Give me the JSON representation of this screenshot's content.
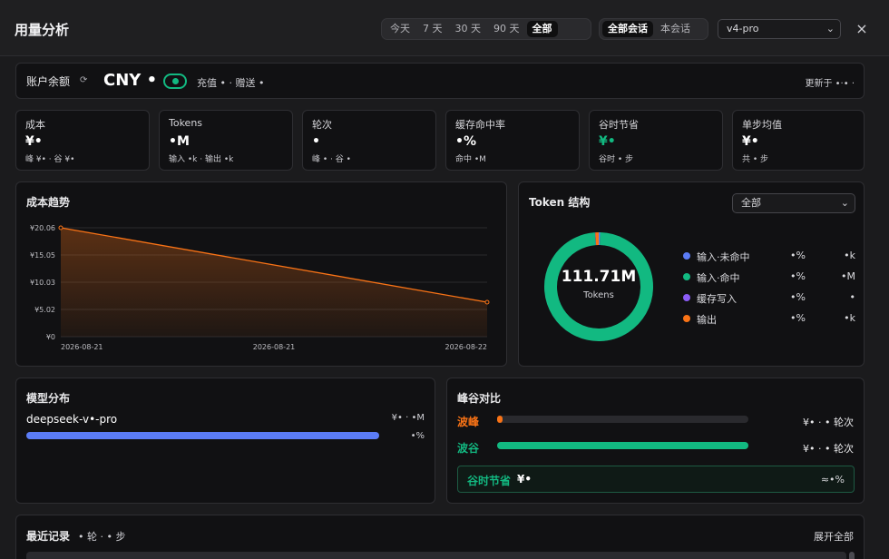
{
  "header": {
    "title": "用量分析",
    "range_options": [
      "今天",
      "7 天",
      "30 天",
      "90 天",
      "全部"
    ],
    "range_active": 4,
    "scope_options": [
      "全部会话",
      "本会话"
    ],
    "scope_active": 0,
    "model_select": "v4-pro",
    "close_label": "×"
  },
  "balance": {
    "label": "账户余额",
    "refresh_icon": "⟳",
    "currency": "CNY •",
    "detail": "充值 • · 赠送 •",
    "updated": "更新于 •·• ·"
  },
  "stats": [
    {
      "key": "成本",
      "value": "¥•",
      "sub": "峰 ¥• · 谷 ¥•",
      "green": false
    },
    {
      "key": "Tokens",
      "value": "•M",
      "sub": "输入 •k · 输出 •k",
      "green": false
    },
    {
      "key": "轮次",
      "value": "•",
      "sub": "峰 • · 谷 •",
      "green": false
    },
    {
      "key": "缓存命中率",
      "value": "•%",
      "sub": "命中 •M",
      "green": false
    },
    {
      "key": "谷时节省",
      "value": "¥•",
      "sub": "谷时 • 步",
      "green": true
    },
    {
      "key": "单步均值",
      "value": "¥•",
      "sub": "共 • 步",
      "green": false
    }
  ],
  "cost_trend": {
    "title": "成本趋势"
  },
  "chart_data": {
    "type": "area",
    "title": "成本趋势",
    "x": [
      "2026-08-21",
      "2026-08-22"
    ],
    "x_tick_labels": [
      "2026-08-21",
      "2026-08-21",
      "2026-08-22"
    ],
    "y_tick_labels": [
      "¥20.06",
      "¥15.05",
      "¥10.03",
      "¥5.02",
      "¥0"
    ],
    "series": [
      {
        "values": [
          20.06,
          6.35
        ],
        "color": "#f97316"
      }
    ],
    "ylim": [
      0,
      20.06
    ],
    "grid": true
  },
  "token_structure": {
    "title": "Token 结构",
    "filter": "全部",
    "total": "111.71M",
    "total_unit": "Tokens",
    "segments": [
      {
        "name": "输入·未命中",
        "pct": "•%",
        "value": "•k",
        "color": "#5b7cf6",
        "share": 0.004
      },
      {
        "name": "输入·命中",
        "pct": "•%",
        "value": "•M",
        "color": "#12b981",
        "share": 0.985
      },
      {
        "name": "缓存写入",
        "pct": "•%",
        "value": "•",
        "color": "#8b5cf6",
        "share": 0.001
      },
      {
        "name": "输出",
        "pct": "•%",
        "value": "•k",
        "color": "#f97316",
        "share": 0.01
      }
    ]
  },
  "model_dist": {
    "title": "模型分布",
    "items": [
      {
        "name": "deepseek-v•-pro",
        "value": "¥• · •M",
        "pct": "•%",
        "share": 1.0,
        "color": "#5b7cf6"
      }
    ]
  },
  "peak_valley": {
    "title": "峰谷对比",
    "rows": [
      {
        "label": "波峰",
        "value": "¥• · • 轮次",
        "share": 0.02,
        "color": "#f97316"
      },
      {
        "label": "波谷",
        "value": "¥• · • 轮次",
        "share": 1.0,
        "color": "#12b981"
      }
    ],
    "saving_label": "谷时节省",
    "saving_value": "¥•",
    "saving_ratio": "≈•%"
  },
  "recent": {
    "title": "最近记录",
    "meta": "• 轮 · • 步",
    "expand": "展开全部"
  }
}
